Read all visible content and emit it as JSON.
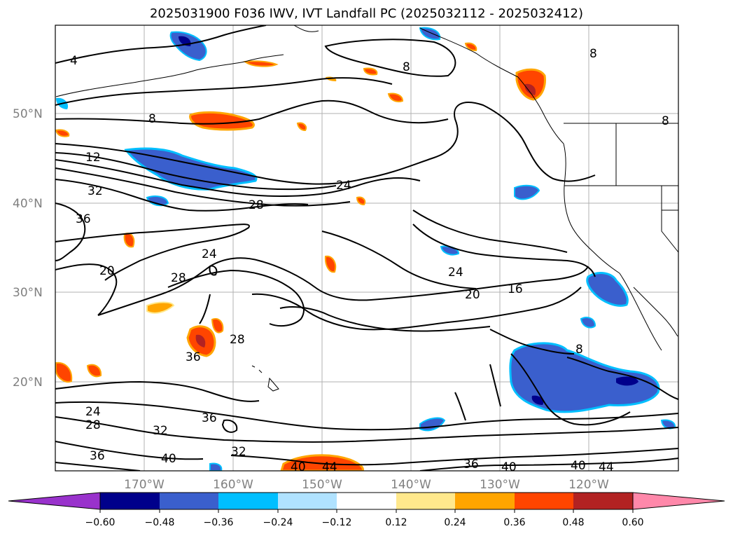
{
  "title": "2025031900 F036 IWV, IVT Landfall PC (2025032112 - 2025032412)",
  "map": {
    "lat_ticks": [
      "50°N",
      "40°N",
      "30°N",
      "20°N"
    ],
    "lon_ticks": [
      "170°W",
      "160°W",
      "150°W",
      "140°W",
      "130°W",
      "120°W"
    ],
    "contour_labels": [
      "4",
      "8",
      "8",
      "8",
      "8",
      "12",
      "24",
      "28",
      "32",
      "36",
      "20",
      "24",
      "28",
      "24",
      "20",
      "16",
      "8",
      "36",
      "28",
      "24",
      "28",
      "32",
      "36",
      "32",
      "36",
      "40",
      "40",
      "44",
      "36",
      "40",
      "40",
      "44"
    ],
    "shading_colors": {
      "strong_positive": "#b22222",
      "positive": "#ff4500",
      "weak_positive": "#ffa500",
      "faint_positive": "#ffe88c",
      "negative": "#3a5fcd",
      "strong_negative": "#00008b",
      "weak_negative": "#00bfff"
    }
  },
  "colorbar": {
    "tick_labels": [
      "−0.60",
      "−0.48",
      "−0.36",
      "−0.24",
      "−0.12",
      "0.12",
      "0.24",
      "0.36",
      "0.48",
      "0.60"
    ],
    "colors": [
      "#9932cc",
      "#00008b",
      "#3a5fcd",
      "#00bfff",
      "#b0e2ff",
      "#ffffff",
      "#ffe88c",
      "#ffa500",
      "#ff4500",
      "#b22222",
      "#ff88aa"
    ]
  }
}
